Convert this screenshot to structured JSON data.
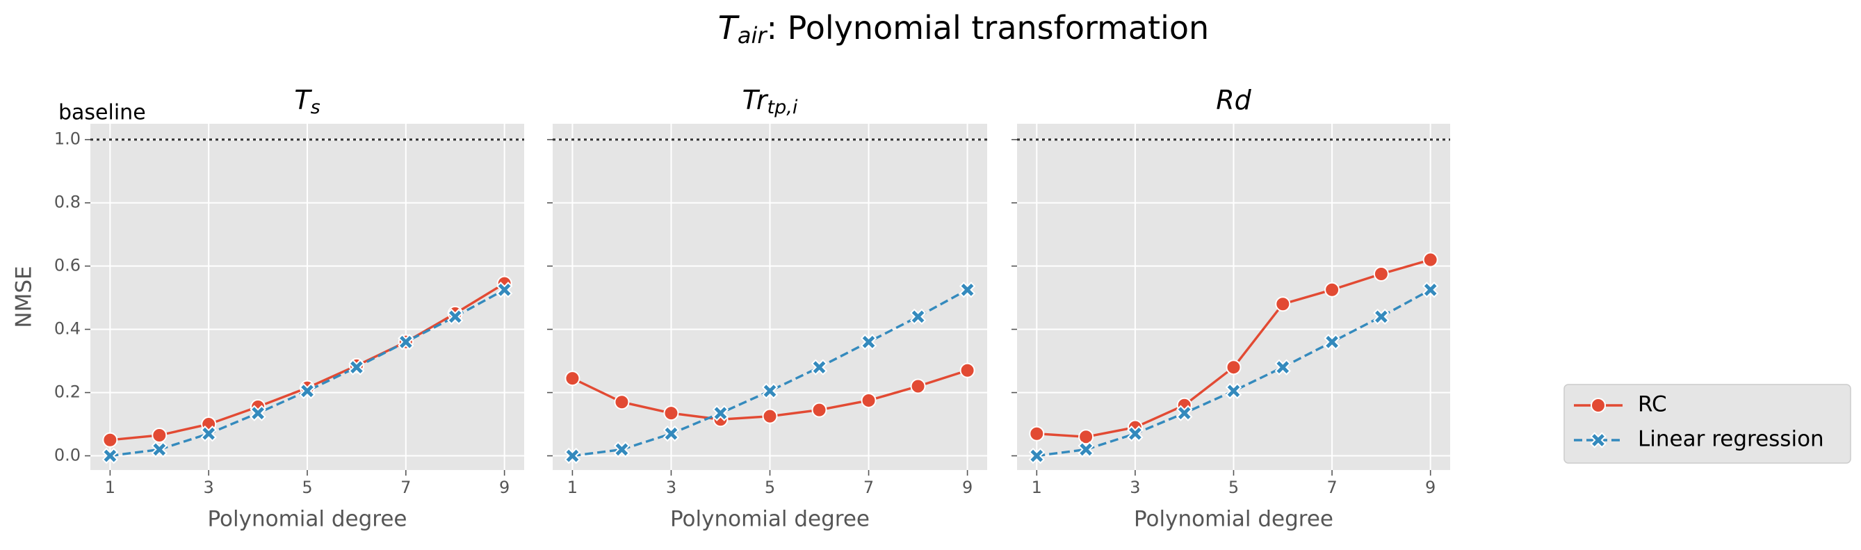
{
  "title": {
    "base": "T",
    "sub": "air",
    "rest": ": Polynomial transformation"
  },
  "chart_data": [
    {
      "type": "line",
      "title": {
        "base": "T",
        "sub": "s"
      },
      "x": [
        1,
        2,
        3,
        4,
        5,
        6,
        7,
        8,
        9
      ],
      "series": [
        {
          "name": "RC",
          "color": "#E24A33",
          "marker": "circle",
          "dash": false,
          "values": [
            0.05,
            0.065,
            0.1,
            0.155,
            0.215,
            0.285,
            0.36,
            0.45,
            0.545
          ]
        },
        {
          "name": "Linear regression",
          "color": "#348ABD",
          "marker": "x",
          "dash": true,
          "values": [
            0.0,
            0.02,
            0.07,
            0.135,
            0.205,
            0.28,
            0.36,
            0.44,
            0.525
          ]
        }
      ],
      "xlim": [
        0.6,
        9.4
      ],
      "ylim": [
        -0.045,
        1.05
      ],
      "xticks": [
        1,
        3,
        5,
        7,
        9
      ],
      "yticks": [
        {
          "value": 0,
          "label": "0.0"
        },
        {
          "value": 0.2,
          "label": "0.2"
        },
        {
          "value": 0.4,
          "label": "0.4"
        },
        {
          "value": 0.6,
          "label": "0.6"
        },
        {
          "value": 0.8,
          "label": "0.8"
        },
        {
          "value": 1,
          "label": "1.0"
        }
      ],
      "xlabel": "Polynomial degree",
      "ylabel": "NMSE",
      "baseline": 1.0,
      "baseline_label": "baseline",
      "grid": true
    },
    {
      "type": "line",
      "title": {
        "base": "Tr",
        "sub": "tp,i"
      },
      "x": [
        1,
        2,
        3,
        4,
        5,
        6,
        7,
        8,
        9
      ],
      "series": [
        {
          "color": "#E24A33",
          "marker": "circle",
          "dash": false,
          "values": [
            0.245,
            0.17,
            0.135,
            0.115,
            0.125,
            0.145,
            0.175,
            0.22,
            0.27
          ]
        },
        {
          "color": "#348ABD",
          "marker": "x",
          "dash": true,
          "values": [
            0.0,
            0.02,
            0.07,
            0.135,
            0.205,
            0.28,
            0.36,
            0.44,
            0.525
          ]
        }
      ],
      "xlim": [
        0.6,
        9.4
      ],
      "ylim": [
        -0.045,
        1.05
      ],
      "xticks": [
        1,
        3,
        5,
        7,
        9
      ],
      "yticks": [
        0,
        0.2,
        0.4,
        0.6,
        0.8,
        1
      ],
      "xlabel": "Polynomial degree",
      "baseline": 1.0,
      "grid": true
    },
    {
      "type": "line",
      "title": {
        "base": "Rd"
      },
      "x": [
        1,
        2,
        3,
        4,
        5,
        6,
        7,
        8,
        9
      ],
      "series": [
        {
          "color": "#E24A33",
          "marker": "circle",
          "dash": false,
          "values": [
            0.07,
            0.06,
            0.09,
            0.16,
            0.28,
            0.48,
            0.525,
            0.575,
            0.62
          ]
        },
        {
          "color": "#348ABD",
          "marker": "x",
          "dash": true,
          "values": [
            0.0,
            0.02,
            0.07,
            0.135,
            0.205,
            0.28,
            0.36,
            0.44,
            0.525
          ]
        }
      ],
      "xlim": [
        0.6,
        9.4
      ],
      "ylim": [
        -0.045,
        1.05
      ],
      "xticks": [
        1,
        3,
        5,
        7,
        9
      ],
      "yticks": [
        0,
        0.2,
        0.4,
        0.6,
        0.8,
        1
      ],
      "xlabel": "Polynomial degree",
      "baseline": 1.0,
      "grid": true
    }
  ]
}
